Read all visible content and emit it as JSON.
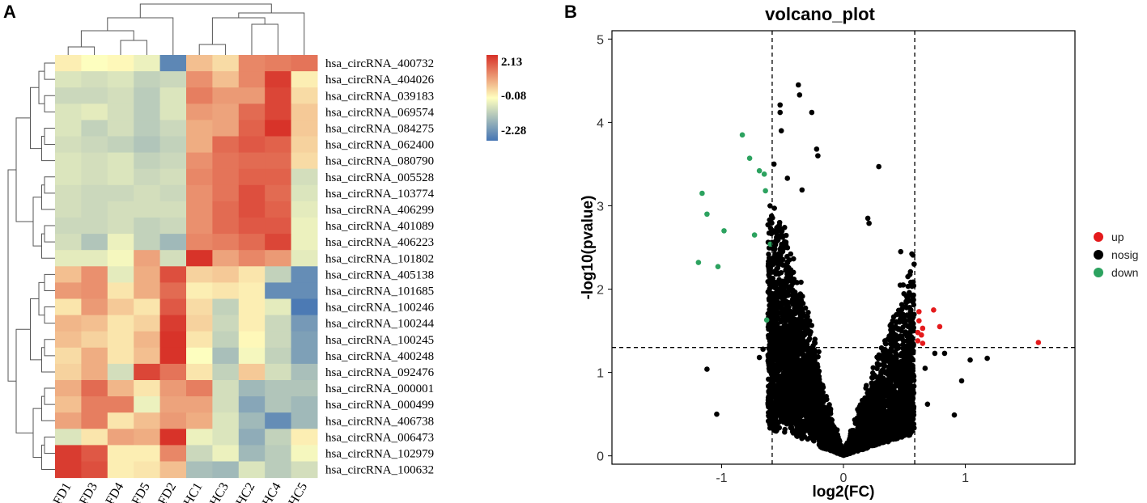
{
  "panels": {
    "heatmap_letter": "A",
    "volcano_letter": "B"
  },
  "chart_data": [
    {
      "type": "heatmap",
      "columns": [
        "FD1",
        "FD3",
        "FD4",
        "FD5",
        "FD2",
        "HC1",
        "HC3",
        "HC2",
        "HC4",
        "HC5"
      ],
      "rows": [
        "hsa_circRNA_400732",
        "hsa_circRNA_404026",
        "hsa_circRNA_039183",
        "hsa_circRNA_069574",
        "hsa_circRNA_084275",
        "hsa_circRNA_062400",
        "hsa_circRNA_080790",
        "hsa_circRNA_005528",
        "hsa_circRNA_103774",
        "hsa_circRNA_406299",
        "hsa_circRNA_401089",
        "hsa_circRNA_406223",
        "hsa_circRNA_101802",
        "hsa_circRNA_405138",
        "hsa_circRNA_101685",
        "hsa_circRNA_100246",
        "hsa_circRNA_100244",
        "hsa_circRNA_100245",
        "hsa_circRNA_400248",
        "hsa_circRNA_092476",
        "hsa_circRNA_000001",
        "hsa_circRNA_000499",
        "hsa_circRNA_406738",
        "hsa_circRNA_006473",
        "hsa_circRNA_102979",
        "hsa_circRNA_100632"
      ],
      "values": [
        [
          0.1,
          -0.1,
          0.0,
          -0.3,
          -2.0,
          0.6,
          0.3,
          1.2,
          1.3,
          1.4
        ],
        [
          -0.5,
          -0.6,
          -0.5,
          -0.8,
          -0.7,
          1.1,
          0.6,
          1.2,
          2.0,
          0.1
        ],
        [
          -0.7,
          -0.7,
          -0.6,
          -0.9,
          -0.5,
          1.3,
          1.0,
          1.0,
          1.9,
          0.3
        ],
        [
          -0.5,
          -0.4,
          -0.6,
          -0.9,
          -0.5,
          1.0,
          0.9,
          1.5,
          1.9,
          0.5
        ],
        [
          -0.5,
          -0.8,
          -0.6,
          -0.9,
          -0.7,
          0.8,
          0.9,
          1.6,
          2.1,
          0.5
        ],
        [
          -0.6,
          -0.7,
          -0.8,
          -1.0,
          -0.8,
          0.8,
          1.5,
          1.7,
          1.6,
          0.4
        ],
        [
          -0.5,
          -0.6,
          -0.5,
          -0.8,
          -0.7,
          1.1,
          1.4,
          1.5,
          1.5,
          0.3
        ],
        [
          -0.5,
          -0.6,
          -0.5,
          -0.7,
          -0.6,
          1.2,
          1.4,
          1.6,
          1.6,
          -0.6
        ],
        [
          -0.6,
          -0.7,
          -0.7,
          -0.6,
          -0.7,
          1.1,
          1.4,
          1.8,
          1.5,
          -0.5
        ],
        [
          -0.6,
          -0.7,
          -0.6,
          -0.6,
          -0.6,
          1.1,
          1.5,
          1.8,
          1.6,
          -0.4
        ],
        [
          -0.7,
          -0.7,
          -0.6,
          -0.8,
          -0.7,
          1.1,
          1.5,
          1.7,
          1.7,
          -0.3
        ],
        [
          -0.6,
          -1.0,
          -0.3,
          -0.8,
          -1.2,
          1.2,
          1.3,
          1.5,
          1.9,
          -0.3
        ],
        [
          -0.4,
          -0.4,
          -0.2,
          0.9,
          -0.6,
          2.1,
          0.9,
          1.2,
          1.0,
          -0.4
        ],
        [
          0.6,
          1.1,
          -0.4,
          0.8,
          1.8,
          0.4,
          0.5,
          0.2,
          -0.8,
          -1.9
        ],
        [
          1.0,
          1.1,
          0.2,
          0.8,
          1.5,
          0.1,
          0.2,
          0.1,
          -1.9,
          -1.9
        ],
        [
          0.2,
          1.0,
          0.5,
          0.2,
          1.7,
          0.3,
          -0.8,
          0.1,
          -0.4,
          -2.2
        ],
        [
          0.7,
          0.6,
          0.2,
          0.4,
          2.0,
          0.4,
          -0.7,
          0.1,
          -0.7,
          -1.7
        ],
        [
          0.6,
          0.4,
          0.2,
          0.7,
          2.1,
          0.2,
          -0.8,
          0.0,
          -0.7,
          -1.6
        ],
        [
          0.3,
          0.8,
          0.2,
          0.6,
          2.1,
          -0.1,
          -1.1,
          -0.2,
          -0.8,
          -1.6
        ],
        [
          0.4,
          0.8,
          -0.6,
          1.9,
          1.4,
          0.2,
          -0.8,
          0.5,
          -0.6,
          -1.1
        ],
        [
          0.8,
          1.5,
          0.7,
          0.2,
          1.0,
          1.3,
          -0.6,
          -1.2,
          -1.0,
          -1.0
        ],
        [
          0.6,
          1.3,
          1.3,
          -0.3,
          0.9,
          0.9,
          -0.6,
          -1.5,
          -1.0,
          -1.2
        ],
        [
          0.9,
          1.3,
          0.2,
          0.6,
          1.0,
          0.8,
          -0.5,
          -1.2,
          -1.9,
          -1.2
        ],
        [
          -0.5,
          0.2,
          0.9,
          0.8,
          2.1,
          -0.3,
          -0.5,
          -1.4,
          -0.8,
          0.1
        ],
        [
          2.0,
          1.7,
          0.1,
          0.1,
          1.2,
          -0.7,
          -0.3,
          -1.2,
          -0.9,
          -0.2
        ],
        [
          2.0,
          1.8,
          0.1,
          0.2,
          0.6,
          -1.1,
          -1.2,
          -0.5,
          -0.9,
          -0.6
        ]
      ],
      "colorbar": {
        "max_label": "2.13",
        "mid_label": "-0.08",
        "min_label": "-2.28",
        "max": 2.13,
        "mid": -0.08,
        "min": -2.28,
        "colors": [
          "#4575b4",
          "#ffffbf",
          "#d73027"
        ]
      },
      "row_dendrogram_groups": [
        13,
        13
      ],
      "col_dendrogram_groups": [
        5,
        5
      ]
    },
    {
      "type": "scatter",
      "title": "volcano_plot",
      "xlabel": "log2(FC)",
      "ylabel": "-log10(pvalue)",
      "xlim": [
        -1.9,
        1.9
      ],
      "ylim": [
        -0.1,
        5.1
      ],
      "xticks": [
        -1,
        0,
        1
      ],
      "yticks": [
        0,
        1,
        2,
        3,
        4,
        5
      ],
      "thresholds": {
        "x": [
          -0.585,
          0.585
        ],
        "y": 1.3
      },
      "legend": {
        "position": "right",
        "items": [
          {
            "label": "up",
            "color": "#e41a1c"
          },
          {
            "label": "nosig",
            "color": "#000000"
          },
          {
            "label": "down",
            "color": "#2ca25f"
          }
        ]
      },
      "series": [
        {
          "name": "down",
          "color": "#2ca25f",
          "points": [
            [
              -0.83,
              3.85
            ],
            [
              -0.77,
              3.57
            ],
            [
              -0.69,
              3.42
            ],
            [
              -0.65,
              3.38
            ],
            [
              -0.64,
              3.18
            ],
            [
              -1.16,
              3.15
            ],
            [
              -1.12,
              2.9
            ],
            [
              -0.98,
              2.7
            ],
            [
              -0.73,
              2.65
            ],
            [
              -0.6,
              2.54
            ],
            [
              -1.19,
              2.32
            ],
            [
              -1.03,
              2.27
            ],
            [
              -0.63,
              1.63
            ]
          ]
        },
        {
          "name": "up",
          "color": "#e41a1c",
          "points": [
            [
              0.62,
              1.73
            ],
            [
              0.74,
              1.75
            ],
            [
              0.62,
              1.62
            ],
            [
              0.65,
              1.53
            ],
            [
              0.79,
              1.55
            ],
            [
              0.61,
              1.48
            ],
            [
              0.64,
              1.45
            ],
            [
              0.61,
              1.38
            ],
            [
              0.65,
              1.35
            ],
            [
              1.6,
              1.36
            ]
          ]
        },
        {
          "name": "nosig_outliers",
          "color": "#000000",
          "points": [
            [
              -0.37,
              4.45
            ],
            [
              -0.36,
              4.33
            ],
            [
              -0.52,
              4.21
            ],
            [
              -0.52,
              4.12
            ],
            [
              -0.26,
              4.12
            ],
            [
              -0.51,
              3.9
            ],
            [
              -0.22,
              3.68
            ],
            [
              -0.21,
              3.6
            ],
            [
              0.29,
              3.47
            ],
            [
              -0.57,
              3.5
            ],
            [
              -0.46,
              3.33
            ],
            [
              -0.34,
              3.19
            ],
            [
              0.2,
              2.85
            ],
            [
              0.21,
              2.79
            ],
            [
              0.47,
              2.45
            ],
            [
              0.58,
              2.3
            ],
            [
              0.49,
              2.05
            ],
            [
              -1.12,
              1.04
            ],
            [
              -1.04,
              0.5
            ],
            [
              0.97,
              0.9
            ],
            [
              0.91,
              0.49
            ],
            [
              1.18,
              1.17
            ],
            [
              1.04,
              1.15
            ],
            [
              0.75,
              1.23
            ],
            [
              0.83,
              1.23
            ],
            [
              -0.66,
              1.28
            ],
            [
              -0.69,
              1.18
            ],
            [
              0.67,
              1.05
            ],
            [
              0.69,
              0.62
            ]
          ]
        }
      ],
      "nosig_cloud": {
        "description": "dense nosig cloud of several thousand points forming a V shape",
        "left_arm_x_range": [
          -0.7,
          0.0
        ],
        "right_arm_x_range": [
          0.0,
          0.7
        ],
        "max_y": 3.0,
        "approx_count": 4500
      }
    }
  ]
}
